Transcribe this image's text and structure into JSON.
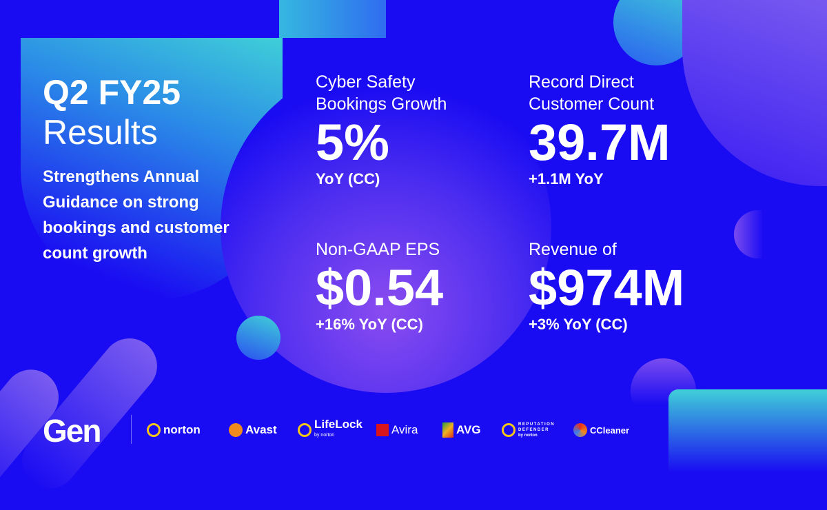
{
  "heading": {
    "line1": "Q2 FY25",
    "line2": "Results",
    "subtitle": [
      "Strengthens Annual",
      "Guidance on strong",
      "bookings and customer",
      "count growth"
    ]
  },
  "metrics": [
    {
      "label": [
        "Cyber Safety",
        "Bookings Growth"
      ],
      "value": "5%",
      "sub": "YoY (CC)"
    },
    {
      "label": [
        "Record Direct",
        "Customer Count"
      ],
      "value": "39.7M",
      "sub": "+1.1M YoY"
    },
    {
      "label": [
        "Non-GAAP EPS"
      ],
      "value": "$0.54",
      "sub": "+16% YoY (CC)"
    },
    {
      "label": [
        "Revenue of"
      ],
      "value": "$974M",
      "sub": "+3% YoY (CC)"
    }
  ],
  "brands": {
    "gen": "Gen",
    "norton": "norton",
    "avast": "Avast",
    "lifelock": "LifeLock",
    "lifelock_by": "by norton",
    "avira": "Avira",
    "avg": "AVG",
    "reputation": "REPUTATION",
    "defender": "DEFENDER",
    "defender_by": "by norton",
    "ccleaner": "CCleaner"
  },
  "colors": {
    "background": "#1a0cf2",
    "cyan": "#3fd0d8",
    "purple": "#8a5cf0"
  }
}
